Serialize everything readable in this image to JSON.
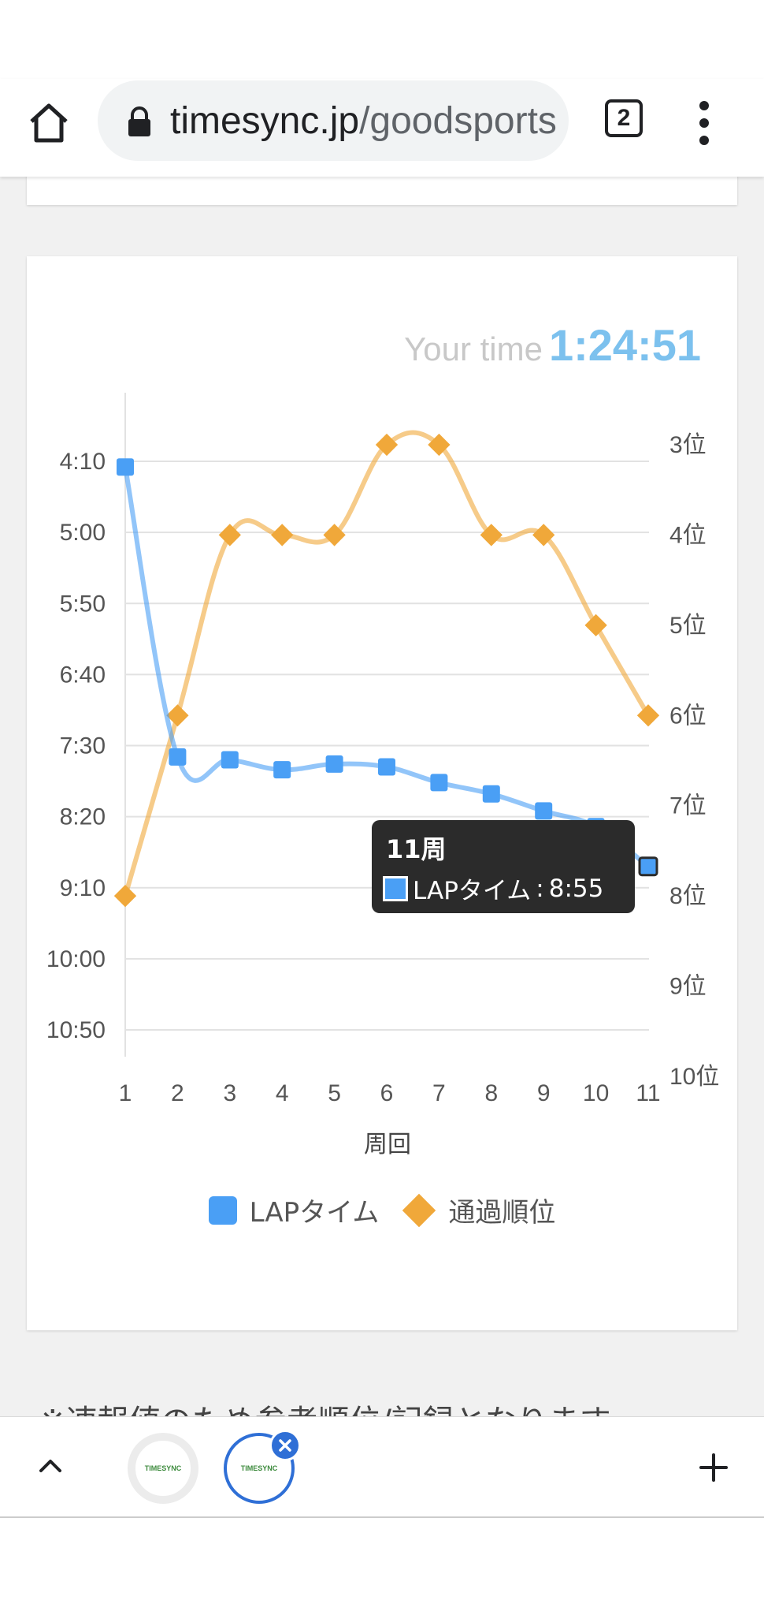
{
  "browser": {
    "url_host": "timesync.jp",
    "url_path": "/goodsports",
    "tab_count": "2"
  },
  "result": {
    "your_time_label": "Your time",
    "your_time_value": "1:24:51"
  },
  "chart_data": {
    "type": "line",
    "x": [
      1,
      2,
      3,
      4,
      5,
      6,
      7,
      8,
      9,
      10,
      11
    ],
    "xlabel": "周回",
    "y_left_ticks": [
      "4:10",
      "5:00",
      "5:50",
      "6:40",
      "7:30",
      "8:20",
      "9:10",
      "10:00",
      "10:50"
    ],
    "y_left_range": [
      "4:10",
      "10:50"
    ],
    "y_right_ticks": [
      "3位",
      "4位",
      "5位",
      "6位",
      "7位",
      "8位",
      "9位",
      "10位"
    ],
    "y_right_range": [
      3,
      10
    ],
    "grid": true,
    "legend_position": "bottom",
    "series": [
      {
        "name": "LAPタイム",
        "axis": "left",
        "color": "#4a9ff5",
        "values_seconds": [
          254,
          458,
          460,
          467,
          463,
          465,
          476,
          484,
          496,
          507,
          535
        ]
      },
      {
        "name": "通過順位",
        "axis": "right",
        "color": "#f0a83a",
        "values": [
          8,
          6,
          4,
          4,
          4,
          3,
          3,
          4,
          4,
          5,
          6
        ]
      }
    ],
    "tooltip": {
      "title": "11周",
      "series_label": "LAPタイム",
      "value": "8:55"
    }
  },
  "note": "※速報値のため参考順位/記録となります",
  "tab_strip": {
    "tab1_label": "TIMESYNC",
    "tab2_label": "TIMESYNC"
  }
}
